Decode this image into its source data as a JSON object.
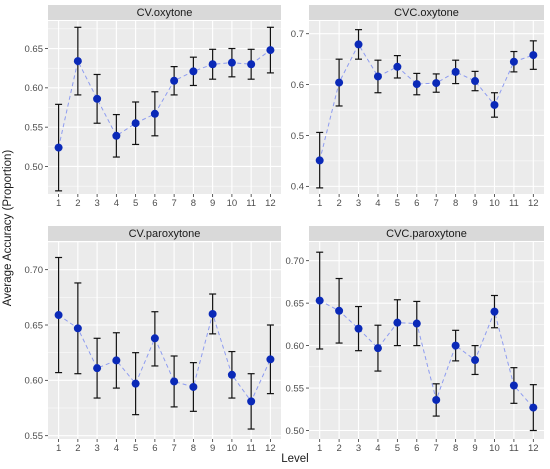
{
  "chart_data": {
    "type": "line",
    "xlabel": "Level",
    "ylabel": "Average Accuracy (Proportion)",
    "x": [
      1,
      2,
      3,
      4,
      5,
      6,
      7,
      8,
      9,
      10,
      11,
      12
    ],
    "x_ticks": [
      "1",
      "2",
      "3",
      "4",
      "5",
      "6",
      "7",
      "8",
      "9",
      "10",
      "11",
      "12"
    ],
    "colors": {
      "point": "#0a29b8",
      "line": "#8e9cf0",
      "errorbar": "#111111",
      "panel_bg": "#ebebeb",
      "strip_bg": "#d9d9d9",
      "grid": "#ffffff"
    },
    "panels": [
      {
        "title": "CV.oxytone",
        "ylim": [
          0.465,
          0.685
        ],
        "y_ticks": [
          0.5,
          0.55,
          0.6,
          0.65
        ],
        "y_tick_labels": [
          "0.50",
          "0.55",
          "0.60",
          "0.65"
        ],
        "mean": [
          0.524,
          0.634,
          0.586,
          0.539,
          0.555,
          0.567,
          0.609,
          0.621,
          0.63,
          0.632,
          0.63,
          0.648
        ],
        "lower": [
          0.469,
          0.591,
          0.555,
          0.512,
          0.528,
          0.539,
          0.591,
          0.603,
          0.611,
          0.614,
          0.611,
          0.619
        ],
        "upper": [
          0.579,
          0.677,
          0.617,
          0.566,
          0.582,
          0.595,
          0.627,
          0.639,
          0.649,
          0.65,
          0.649,
          0.677
        ]
      },
      {
        "title": "CVC.oxytone",
        "ylim": [
          0.385,
          0.725
        ],
        "y_ticks": [
          0.4,
          0.5,
          0.6,
          0.7
        ],
        "y_tick_labels": [
          "0.4",
          "0.5",
          "0.6",
          "0.7"
        ],
        "mean": [
          0.451,
          0.604,
          0.679,
          0.616,
          0.635,
          0.601,
          0.603,
          0.625,
          0.607,
          0.56,
          0.645,
          0.658
        ],
        "lower": [
          0.397,
          0.558,
          0.65,
          0.584,
          0.613,
          0.58,
          0.585,
          0.602,
          0.588,
          0.536,
          0.625,
          0.63
        ],
        "upper": [
          0.506,
          0.65,
          0.708,
          0.648,
          0.657,
          0.622,
          0.621,
          0.648,
          0.626,
          0.584,
          0.665,
          0.686
        ]
      },
      {
        "title": "CV.paroxytone",
        "ylim": [
          0.547,
          0.725
        ],
        "y_ticks": [
          0.55,
          0.6,
          0.65,
          0.7
        ],
        "y_tick_labels": [
          "0.55",
          "0.60",
          "0.65",
          "0.70"
        ],
        "mean": [
          0.659,
          0.647,
          0.611,
          0.618,
          0.597,
          0.638,
          0.599,
          0.594,
          0.66,
          0.605,
          0.581,
          0.619
        ],
        "lower": [
          0.607,
          0.606,
          0.584,
          0.593,
          0.569,
          0.613,
          0.576,
          0.572,
          0.642,
          0.584,
          0.556,
          0.588
        ],
        "upper": [
          0.711,
          0.688,
          0.638,
          0.643,
          0.625,
          0.662,
          0.622,
          0.616,
          0.678,
          0.626,
          0.606,
          0.65
        ]
      },
      {
        "title": "CVC.paroxytone",
        "ylim": [
          0.49,
          0.722
        ],
        "y_ticks": [
          0.5,
          0.55,
          0.6,
          0.65,
          0.7
        ],
        "y_tick_labels": [
          "0.50",
          "0.55",
          "0.60",
          "0.65",
          "0.70"
        ],
        "mean": [
          0.653,
          0.641,
          0.62,
          0.597,
          0.627,
          0.626,
          0.536,
          0.6,
          0.583,
          0.64,
          0.553,
          0.527
        ],
        "lower": [
          0.596,
          0.603,
          0.594,
          0.57,
          0.6,
          0.6,
          0.517,
          0.582,
          0.566,
          0.621,
          0.532,
          0.5
        ],
        "upper": [
          0.71,
          0.679,
          0.646,
          0.624,
          0.654,
          0.652,
          0.555,
          0.618,
          0.6,
          0.659,
          0.574,
          0.554
        ]
      }
    ]
  }
}
